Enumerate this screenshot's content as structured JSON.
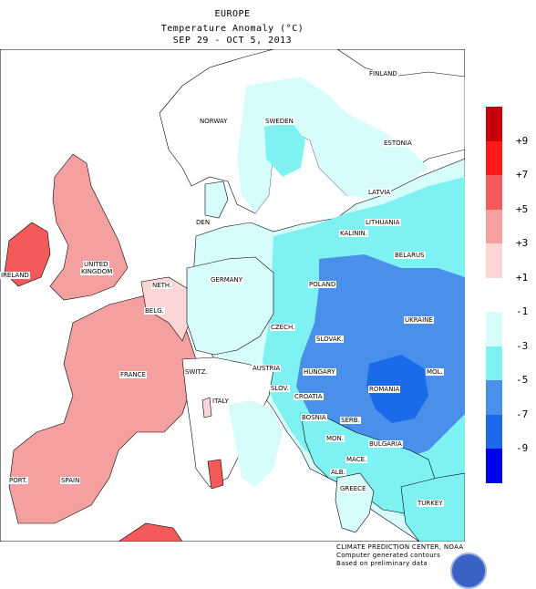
{
  "title": {
    "line1": "EUROPE",
    "line2": "Temperature Anomaly (°C)",
    "line3": "SEP 29 - OCT 5, 2013"
  },
  "legend": {
    "bins": [
      {
        "color": "#c8000c"
      },
      {
        "color": "#ff1a1a"
      },
      {
        "color": "#f55a5a"
      },
      {
        "color": "#f5a0a0"
      },
      {
        "color": "#fcd6d6"
      },
      {
        "color": "#ffffff"
      },
      {
        "color": "#d6fcfc"
      },
      {
        "color": "#7ef2f2"
      },
      {
        "color": "#4a90ea"
      },
      {
        "color": "#1a6aea"
      },
      {
        "color": "#0000ea"
      }
    ],
    "ticks": [
      "+9",
      "+7",
      "+5",
      "+3",
      "+1",
      "-1",
      "-3",
      "-5",
      "-7",
      "-9"
    ]
  },
  "countries": [
    {
      "name": "FINLAND",
      "key": "finland"
    },
    {
      "name": "NORWAY",
      "key": "norway"
    },
    {
      "name": "SWEDEN",
      "key": "sweden"
    },
    {
      "name": "ESTONIA",
      "key": "estonia"
    },
    {
      "name": "LATVIA",
      "key": "latvia"
    },
    {
      "name": "DEN",
      "key": "den"
    },
    {
      "name": "LITHUANIA",
      "key": "lithuania"
    },
    {
      "name": "KALININ.",
      "key": "kalinin"
    },
    {
      "name": "BELARUS",
      "key": "belarus"
    },
    {
      "name": "UNITED",
      "key": "united"
    },
    {
      "name": "KINGDOM",
      "key": "kingdom"
    },
    {
      "name": "IRELAND",
      "key": "ireland"
    },
    {
      "name": "GERMANY",
      "key": "germany"
    },
    {
      "name": "POLAND",
      "key": "poland"
    },
    {
      "name": "NETH.",
      "key": "neth"
    },
    {
      "name": "BELG.",
      "key": "belg"
    },
    {
      "name": "UKRAINE",
      "key": "ukraine"
    },
    {
      "name": "CZECH.",
      "key": "czech"
    },
    {
      "name": "SLOVAK.",
      "key": "slovak"
    },
    {
      "name": "AUSTRIA",
      "key": "austria"
    },
    {
      "name": "HUNGARY",
      "key": "hungary"
    },
    {
      "name": "MOL.",
      "key": "mol"
    },
    {
      "name": "FRANCE",
      "key": "france"
    },
    {
      "name": "SWITZ.",
      "key": "switz"
    },
    {
      "name": "SLOV.",
      "key": "slov"
    },
    {
      "name": "CROATIA",
      "key": "croatia"
    },
    {
      "name": "ROMANIA",
      "key": "romania"
    },
    {
      "name": "ITALY",
      "key": "italy"
    },
    {
      "name": "BOSNIA",
      "key": "bosnia"
    },
    {
      "name": "SERB.",
      "key": "serb"
    },
    {
      "name": "MON.",
      "key": "mon"
    },
    {
      "name": "BULGARIA",
      "key": "bulgaria"
    },
    {
      "name": "MACE.",
      "key": "mace"
    },
    {
      "name": "ALB.",
      "key": "alb"
    },
    {
      "name": "PORT.",
      "key": "port"
    },
    {
      "name": "SPAIN",
      "key": "spain"
    },
    {
      "name": "GREECE",
      "key": "greece"
    },
    {
      "name": "TURKEY",
      "key": "turkey"
    }
  ],
  "credits": {
    "line1": "CLIMATE PREDICTION CENTER, NOAA",
    "line2": "Computer generated contours",
    "line3": "Based on preliminary data"
  },
  "colors": {
    "sea": "#ffffff",
    "warm1": "#fcd6d6",
    "warm3": "#f5a0a0",
    "neutral": "#ffffff",
    "cool1": "#d6fcfc",
    "cool3": "#7ef2f2",
    "cool5": "#4a90ea",
    "cool7": "#1a6aea"
  }
}
